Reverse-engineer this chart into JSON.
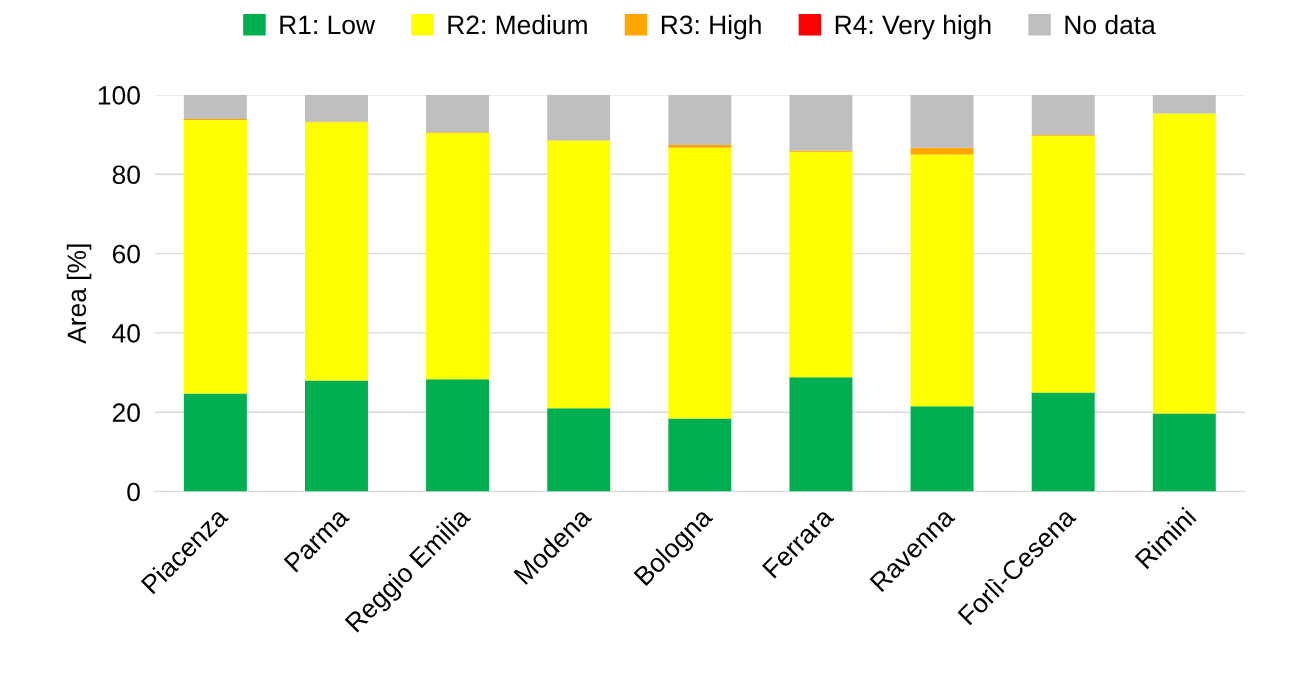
{
  "chart_data": {
    "type": "bar",
    "stacked": true,
    "ylabel": "Area [%]",
    "categories": [
      "Piacenza",
      "Parma",
      "Reggio Emilia",
      "Modena",
      "Bologna",
      "Ferrara",
      "Ravenna",
      "Forlì-Cesena",
      "Rimini"
    ],
    "series": [
      {
        "name": "R1: Low",
        "color": "#00b050",
        "values": [
          24.7,
          28.0,
          28.3,
          21.0,
          18.4,
          28.8,
          21.5,
          25.0,
          19.7
        ]
      },
      {
        "name": "R2: Medium",
        "color": "#ffff00",
        "values": [
          69.0,
          65.1,
          62.1,
          67.5,
          68.3,
          56.9,
          63.5,
          64.7,
          75.6
        ]
      },
      {
        "name": "R3: High",
        "color": "#ffa500",
        "values": [
          0.2,
          0.2,
          0.2,
          0.1,
          0.7,
          0.3,
          1.7,
          0.2,
          0.0
        ]
      },
      {
        "name": "R4: Very high",
        "color": "#ff0000",
        "values": [
          0,
          0,
          0,
          0,
          0,
          0,
          0,
          0,
          0
        ]
      },
      {
        "name": "No data",
        "color": "#bfbfbf",
        "values": [
          6.1,
          6.7,
          9.4,
          11.4,
          12.6,
          14.0,
          13.3,
          10.1,
          4.7
        ]
      }
    ],
    "ylim": [
      0,
      100
    ],
    "yticks": [
      0,
      20,
      40,
      60,
      80,
      100
    ],
    "grid": "y",
    "legend": "top"
  }
}
